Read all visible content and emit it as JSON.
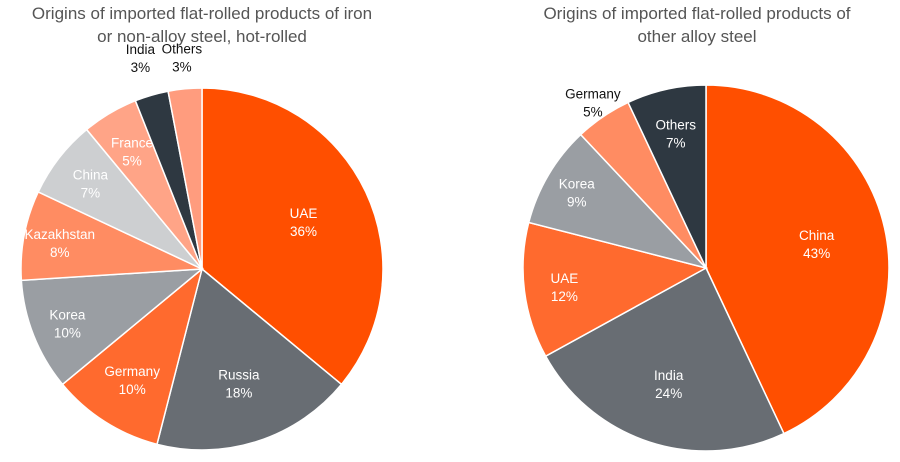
{
  "chart_data": [
    {
      "type": "pie",
      "title_lines": [
        "Origins of imported flat-rolled products of iron",
        "or non-alloy steel, hot-rolled"
      ],
      "slices": [
        {
          "label": "UAE",
          "value": 36,
          "value_text": "36%",
          "color": "#FF4F00",
          "text_color": "#ffffff"
        },
        {
          "label": "Russia",
          "value": 18,
          "value_text": "18%",
          "color": "#686D73",
          "text_color": "#ffffff"
        },
        {
          "label": "Germany",
          "value": 10,
          "value_text": "10%",
          "color": "#FF6A2E",
          "text_color": "#ffffff"
        },
        {
          "label": "Korea",
          "value": 10,
          "value_text": "10%",
          "color": "#9A9EA3",
          "text_color": "#ffffff"
        },
        {
          "label": "Kazakhstan",
          "value": 8,
          "value_text": "8%",
          "color": "#FF8C62",
          "text_color": "#ffffff"
        },
        {
          "label": "China",
          "value": 7,
          "value_text": "7%",
          "color": "#CDCFD1",
          "text_color": "#ffffff"
        },
        {
          "label": "France",
          "value": 5,
          "value_text": "5%",
          "color": "#FFA487",
          "text_color": "#ffffff"
        },
        {
          "label": "India",
          "value": 3,
          "value_text": "3%",
          "color": "#2E3841",
          "text_color": "#111111"
        },
        {
          "label": "Others",
          "value": 3,
          "value_text": "3%",
          "color": "#FF9C7E",
          "text_color": "#111111"
        }
      ]
    },
    {
      "type": "pie",
      "title_lines": [
        "Origins of imported flat-rolled products of",
        "other alloy steel"
      ],
      "slices": [
        {
          "label": "China",
          "value": 43,
          "value_text": "43%",
          "color": "#FF4F00",
          "text_color": "#ffffff"
        },
        {
          "label": "India",
          "value": 24,
          "value_text": "24%",
          "color": "#686D73",
          "text_color": "#ffffff"
        },
        {
          "label": "UAE",
          "value": 12,
          "value_text": "12%",
          "color": "#FF6A2E",
          "text_color": "#ffffff"
        },
        {
          "label": "Korea",
          "value": 9,
          "value_text": "9%",
          "color": "#9A9EA3",
          "text_color": "#ffffff"
        },
        {
          "label": "Germany",
          "value": 5,
          "value_text": "5%",
          "color": "#FF8C62",
          "text_color": "#111111"
        },
        {
          "label": "Others",
          "value": 7,
          "value_text": "7%",
          "color": "#2E3841",
          "text_color": "#ffffff"
        }
      ]
    }
  ]
}
